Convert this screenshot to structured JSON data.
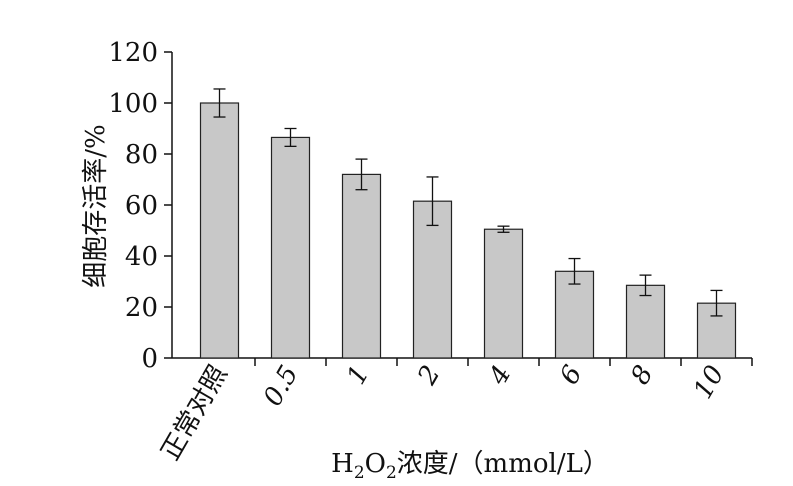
{
  "chart_data": {
    "type": "bar",
    "categories": [
      "正常对照",
      "0.5",
      "1",
      "2",
      "4",
      "6",
      "8",
      "10"
    ],
    "values": [
      100,
      86.5,
      72,
      61.5,
      50.5,
      34,
      28.5,
      21.5
    ],
    "errors": [
      5.5,
      3.5,
      6,
      9.5,
      1.2,
      5,
      4,
      5
    ],
    "ylabel": "细胞存活率/%",
    "xlabel": {
      "prefix": "H",
      "sub1": "2",
      "mid": "O",
      "sub2": "2",
      "suffix": "浓度/（mmol/L）"
    },
    "ylim": [
      0,
      120
    ],
    "yticks": [
      "0",
      "20",
      "40",
      "60",
      "80",
      "100",
      "120"
    ],
    "grid": false
  }
}
